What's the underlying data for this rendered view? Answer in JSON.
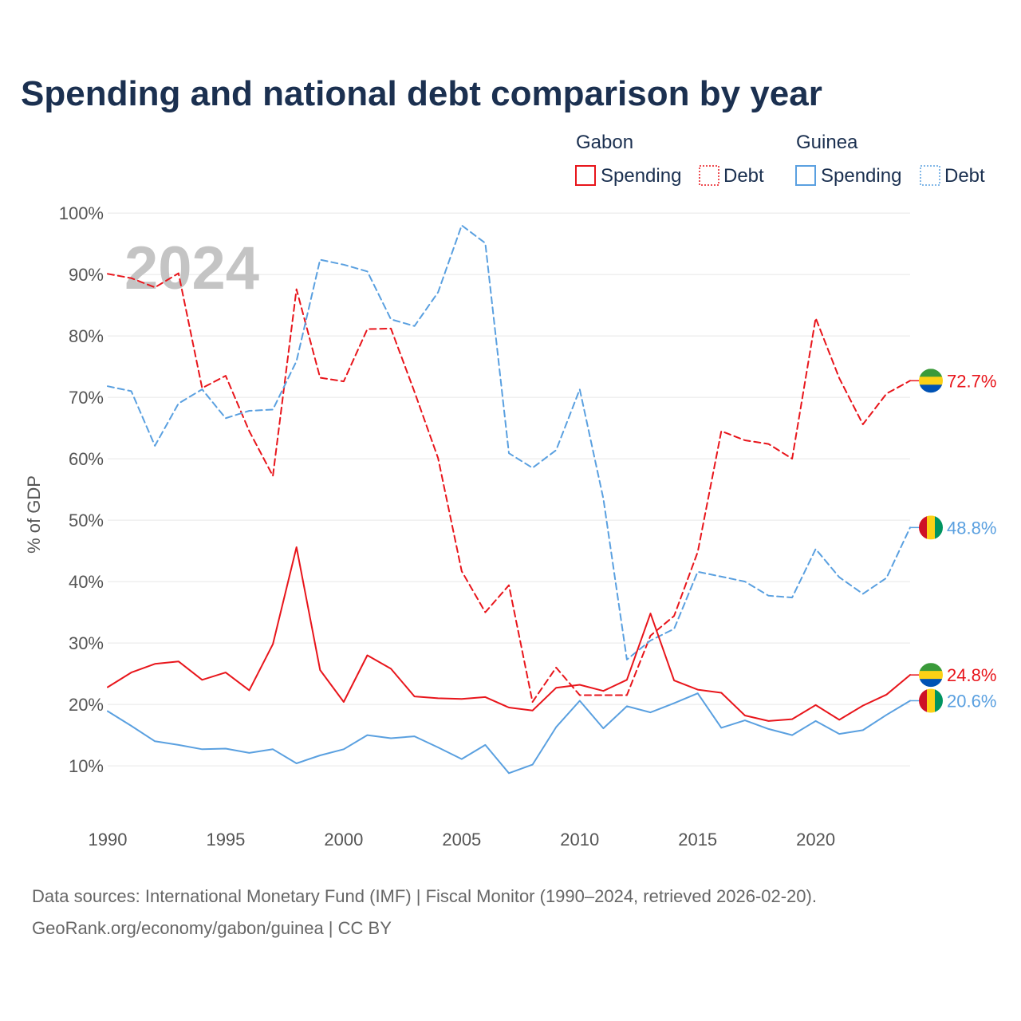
{
  "chart_data": {
    "type": "line",
    "title": "Spending and national debt comparison by year",
    "xlabel": "",
    "ylabel": "% of GDP",
    "year_watermark": "2024",
    "xlim": [
      1990,
      2024
    ],
    "ylim": [
      3,
      103
    ],
    "x_ticks": [
      1990,
      1995,
      2000,
      2005,
      2010,
      2015,
      2020
    ],
    "x_tick_labels": [
      "1990",
      "1995",
      "2000",
      "2005",
      "2010",
      "2015",
      "2020"
    ],
    "y_ticks": [
      10,
      20,
      30,
      40,
      50,
      60,
      70,
      80,
      90,
      100
    ],
    "y_tick_labels": [
      "10%",
      "20%",
      "30%",
      "40%",
      "50%",
      "60%",
      "70%",
      "80%",
      "90%",
      "100%"
    ],
    "grid": true,
    "legend_placement": "top-right",
    "legend": {
      "groups": [
        {
          "name": "Gabon",
          "items": [
            {
              "label": "Spending",
              "style": "solid"
            },
            {
              "label": "Debt",
              "style": "dotted"
            }
          ]
        },
        {
          "name": "Guinea",
          "items": [
            {
              "label": "Spending",
              "style": "solid"
            },
            {
              "label": "Debt",
              "style": "dotted"
            }
          ]
        }
      ]
    },
    "x": [
      1990,
      1991,
      1992,
      1993,
      1994,
      1995,
      1996,
      1997,
      1998,
      1999,
      2000,
      2001,
      2002,
      2003,
      2004,
      2005,
      2006,
      2007,
      2008,
      2009,
      2010,
      2011,
      2012,
      2013,
      2014,
      2015,
      2016,
      2017,
      2018,
      2019,
      2020,
      2021,
      2022,
      2023,
      2024
    ],
    "series": [
      {
        "name": "Gabon Debt",
        "country": "Gabon",
        "metric": "Debt",
        "color": "#e8151b",
        "dash": "dashed",
        "values": [
          90.1,
          89.4,
          87.9,
          90.2,
          71.5,
          73.5,
          64.5,
          57.2,
          87.6,
          73.2,
          72.6,
          81.1,
          81.2,
          70.9,
          60.1,
          41.7,
          35.0,
          39.4,
          20.4,
          26.0,
          21.5,
          21.5,
          21.5,
          31.2,
          34.4,
          44.8,
          64.5,
          63.0,
          62.4,
          60.0,
          82.9,
          73.1,
          65.6,
          70.6,
          72.7
        ],
        "end_label": "72.7%"
      },
      {
        "name": "Guinea Debt",
        "country": "Guinea",
        "metric": "Debt",
        "color": "#5aa0e0",
        "dash": "dashed",
        "values": [
          71.8,
          71.0,
          62.1,
          69.0,
          71.3,
          66.6,
          67.8,
          68.0,
          75.9,
          92.4,
          91.6,
          90.5,
          82.7,
          81.6,
          87.1,
          98.0,
          95.1,
          60.9,
          58.5,
          61.4,
          71.3,
          53.5,
          27.3,
          30.4,
          32.3,
          41.6,
          40.8,
          40.0,
          37.7,
          37.4,
          45.3,
          40.7,
          38.0,
          40.6,
          48.8
        ],
        "end_label": "48.8%"
      },
      {
        "name": "Gabon Spending",
        "country": "Gabon",
        "metric": "Spending",
        "color": "#e8151b",
        "dash": "solid",
        "values": [
          22.8,
          25.2,
          26.6,
          27.0,
          24.0,
          25.2,
          22.3,
          29.8,
          45.6,
          25.6,
          20.4,
          28.0,
          25.8,
          21.3,
          21.0,
          20.9,
          21.2,
          19.5,
          19.0,
          22.7,
          23.2,
          22.2,
          24.0,
          34.8,
          23.9,
          22.4,
          21.9,
          18.2,
          17.3,
          17.6,
          19.9,
          17.5,
          19.8,
          21.6,
          24.8
        ],
        "end_label": "24.8%"
      },
      {
        "name": "Guinea Spending",
        "country": "Guinea",
        "metric": "Spending",
        "color": "#5aa0e0",
        "dash": "solid",
        "values": [
          18.9,
          16.5,
          14.0,
          13.4,
          12.7,
          12.8,
          12.1,
          12.7,
          10.4,
          11.7,
          12.7,
          15.0,
          14.5,
          14.8,
          13.0,
          11.1,
          13.4,
          8.8,
          10.2,
          16.3,
          20.6,
          16.1,
          19.7,
          18.7,
          20.2,
          21.8,
          16.2,
          17.4,
          16.0,
          15.0,
          17.3,
          15.2,
          15.8,
          18.3,
          20.6
        ],
        "end_label": "20.6%"
      }
    ],
    "flags": {
      "Gabon": {
        "colors": [
          "#3a9a3a",
          "#fcd116",
          "#0052b4"
        ],
        "orientation": "horizontal"
      },
      "Guinea": {
        "colors": [
          "#ce1126",
          "#fcd116",
          "#009460"
        ],
        "orientation": "vertical"
      }
    }
  },
  "footer": {
    "sources": "Data sources: International Monetary Fund (IMF) | Fiscal Monitor (1990–2024, retrieved 2026-02-20).",
    "attribution": "GeoRank.org/economy/gabon/guinea | CC BY"
  }
}
